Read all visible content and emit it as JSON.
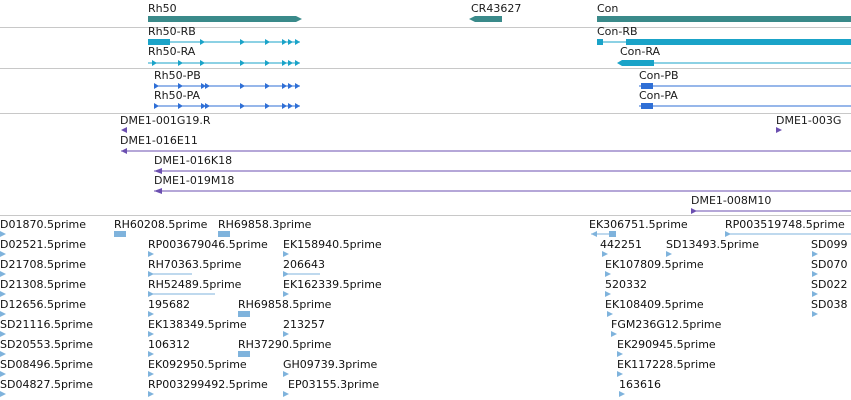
{
  "colors": {
    "gene": "#3a8a8a",
    "transcript_cyan": "#1aa3c8",
    "transcript_blue": "#2f6fd6",
    "clone": "#6b4fb0",
    "est": "#7fb3dc",
    "divider": "#c8c8c8"
  },
  "genes": {
    "rh50": "Rh50",
    "cr43627": "CR43627",
    "con": "Con"
  },
  "transcripts": {
    "rh50_rb": "Rh50-RB",
    "rh50_ra": "Rh50-RA",
    "con_rb": "Con-RB",
    "con_ra": "Con-RA",
    "rh50_pb": "Rh50-PB",
    "rh50_pa": "Rh50-PA",
    "con_pb": "Con-PB",
    "con_pa": "Con-PA"
  },
  "clones": {
    "c1": "DME1-001G19.R",
    "c2": "DME1-016E11",
    "c3": "DME1-016K18",
    "c4": "DME1-019M18",
    "c5": "DME1-003G",
    "c6": "DME1-008M10"
  },
  "ests": {
    "col1": [
      "D01870.5prime",
      "D02521.5prime",
      "D21708.5prime",
      "D21308.5prime",
      "D12656.5prime",
      "SD21116.5prime",
      "SD20553.5prime",
      "SD08496.5prime",
      "SD04827.5prime"
    ],
    "col2": [
      "RH60208.5prime",
      "RP003679046.5prime",
      "RH70363.5prime",
      "RH52489.5prime",
      "195682",
      "EK138349.5prime",
      "106312",
      "EK092950.5prime",
      "RP003299492.5prime"
    ],
    "col3": [
      "RH69858.3prime",
      "EK158940.5prime",
      "206643",
      "EK162339.5prime",
      "RH69858.5prime",
      "213257",
      "RH37290.5prime",
      "GH09739.3prime",
      "EP03155.3prime"
    ],
    "col4": [
      "EK306751.5prime",
      "442251",
      "EK107809.5prime",
      "520332",
      "EK108409.5prime",
      "FGM236G12.5prime",
      "EK290945.5prime",
      "EK117228.5prime",
      "163616"
    ],
    "col5": [
      "RP003519748.5prime",
      "SD13493.5prime"
    ],
    "col6": [
      "SD099",
      "SD070",
      "SD022",
      "SD038"
    ]
  }
}
